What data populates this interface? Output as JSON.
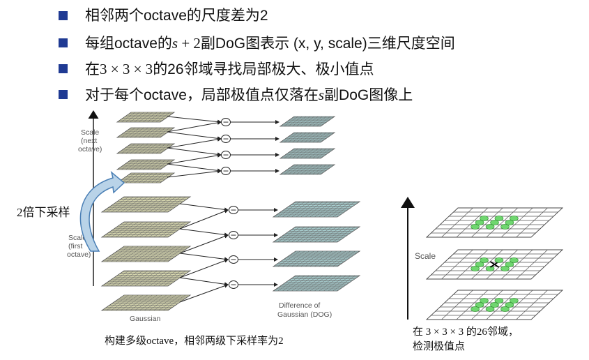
{
  "bullets": [
    {
      "text": "相邻两个octave的尺度差为2"
    },
    {
      "pre": "每组octave的",
      "math": "s",
      "mid": " + 2",
      "post": "副DoG图表示 (x, y, scale)三维尺度空间"
    },
    {
      "pre": "在",
      "mid": "3 × 3 × 3",
      "post": "的26邻域寻找局部极大、极小值点"
    },
    {
      "pre": "对于每个octave，局部极值点仅落在",
      "math": "s",
      "post": "副DoG图像上"
    }
  ],
  "figure_left": {
    "label_next_octave": [
      "Scale",
      "(next",
      "octave)"
    ],
    "label_first_octave": [
      "Scale",
      "(first",
      "octave)"
    ],
    "label_gaussian": "Gaussian",
    "label_dog": [
      "Difference of",
      "Gaussian (DOG)"
    ],
    "downsample_annotation": "2倍下采样",
    "minus_symbol": "−",
    "caption": "构建多级octave，相邻两级下采样率为2"
  },
  "figure_right": {
    "label_scale": "Scale",
    "caption_line1": "在 3 × 3 × 3 的26邻域，",
    "caption_line2": "检测极值点"
  },
  "colors": {
    "bullet_marker": "#1f3a93",
    "gaussian_plane": "#d8d8b0",
    "dog_plane": "#a9cfd0",
    "arrow_fill": "#b9d3e8",
    "arrow_stroke": "#4a7fb5",
    "neighbor_dot": "#6fd66f"
  }
}
